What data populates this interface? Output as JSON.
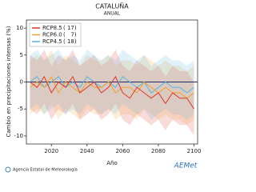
{
  "chart_data": {
    "type": "line",
    "title": "CATALUÑA",
    "subtitle": "ANUAL",
    "x_label": "Año",
    "y_label": "Cambio en precipitaciones intensas (%)",
    "x": [
      2008,
      2012,
      2016,
      2020,
      2024,
      2028,
      2032,
      2036,
      2040,
      2044,
      2048,
      2052,
      2056,
      2060,
      2064,
      2068,
      2072,
      2076,
      2080,
      2084,
      2088,
      2092,
      2096,
      2100
    ],
    "xlim": [
      2006,
      2102
    ],
    "xticks": [
      2020,
      2040,
      2060,
      2080,
      2100
    ],
    "ylim": [
      -11.5,
      11.5
    ],
    "yticks": [
      -10,
      -5,
      0,
      5,
      10
    ],
    "legend": "top-left",
    "series": [
      {
        "name": "RCP8.5",
        "runs": "( 17)",
        "color": "#e0362c",
        "values": [
          0,
          -1,
          1,
          -2,
          0,
          -1,
          1,
          -2,
          -1,
          0,
          -2,
          -1,
          1,
          -2,
          -3,
          -1,
          -2,
          -3,
          -2,
          -4,
          -2,
          -3,
          -3,
          -5
        ],
        "lower": [
          -5,
          -6,
          -4,
          -7,
          -5,
          -6,
          -4,
          -7,
          -6,
          -5,
          -7,
          -6,
          -4,
          -7,
          -8,
          -6,
          -7,
          -8,
          -7,
          -9,
          -7,
          -8,
          -8,
          -10
        ],
        "upper": [
          5,
          4,
          6,
          3,
          5,
          4,
          6,
          3,
          4,
          5,
          3,
          4,
          6,
          3,
          2,
          4,
          3,
          2,
          3,
          1,
          3,
          2,
          2,
          0
        ]
      },
      {
        "name": "RCP6.0",
        "runs": "(   7)",
        "color": "#f0a030",
        "values": [
          -1,
          0,
          -1,
          1,
          -2,
          0,
          -1,
          -2,
          0,
          -1,
          -1,
          0,
          -2,
          -1,
          -1,
          -2,
          0,
          -1,
          -2,
          -1,
          -2,
          -2,
          -3,
          -2
        ],
        "lower": [
          -6,
          -5,
          -6,
          -4,
          -7,
          -5,
          -6,
          -7,
          -5,
          -6,
          -6,
          -5,
          -7,
          -6,
          -6,
          -7,
          -5,
          -6,
          -7,
          -6,
          -7,
          -7,
          -8,
          -7
        ],
        "upper": [
          4,
          5,
          4,
          6,
          3,
          5,
          4,
          3,
          5,
          4,
          4,
          5,
          3,
          4,
          4,
          3,
          5,
          4,
          3,
          4,
          3,
          3,
          2,
          3
        ]
      },
      {
        "name": "RCP4.5",
        "runs": "( 18)",
        "color": "#5ab4e0",
        "values": [
          0,
          1,
          -1,
          0,
          1,
          -1,
          0,
          -1,
          1,
          0,
          -1,
          0,
          -1,
          1,
          0,
          -1,
          0,
          -2,
          -1,
          0,
          -1,
          -1,
          -2,
          -1
        ],
        "lower": [
          -5,
          -4,
          -6,
          -5,
          -4,
          -6,
          -5,
          -6,
          -4,
          -5,
          -6,
          -5,
          -6,
          -4,
          -5,
          -6,
          -5,
          -7,
          -6,
          -5,
          -6,
          -6,
          -7,
          -6
        ],
        "upper": [
          5,
          6,
          4,
          5,
          6,
          4,
          5,
          4,
          6,
          5,
          4,
          5,
          4,
          6,
          5,
          4,
          5,
          3,
          4,
          5,
          4,
          4,
          3,
          4
        ]
      }
    ]
  },
  "footer": {
    "agency": "Agencia Estatal de Meteorología",
    "logo": "AEMet"
  }
}
